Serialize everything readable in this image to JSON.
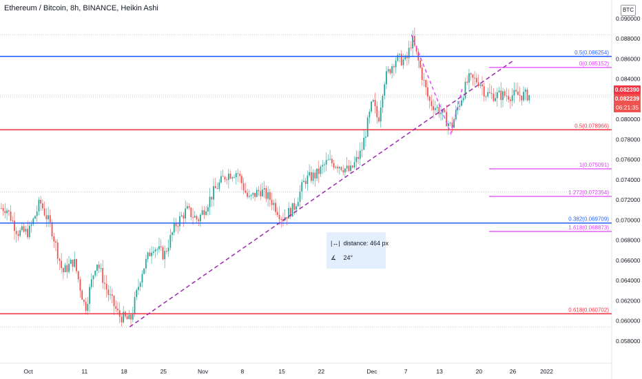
{
  "header": {
    "title": "Ethereum / Bitcoin, 8h, BINANCE, Heikin Ashi",
    "currency_badge": "BTC"
  },
  "price_tags": {
    "last_price": "0.082390",
    "second_price": "0.082239",
    "countdown": "06:21:35",
    "last_color": "#f23645",
    "second_color": "#ef5350"
  },
  "measure_tool": {
    "distance_label": "distance: 464 px",
    "angle_label": "24°",
    "ruler_icon": "ruler-icon",
    "angle_icon": "angle-icon"
  },
  "chart_data": {
    "type": "candlestick",
    "y_ticks": [
      "0.090000",
      "0.088000",
      "0.086000",
      "0.084000",
      "0.082000",
      "0.080000",
      "0.078000",
      "0.076000",
      "0.074000",
      "0.072000",
      "0.070000",
      "0.068000",
      "0.066000",
      "0.064000",
      "0.062000",
      "0.060000",
      "0.058000"
    ],
    "ylim": [
      0.0572,
      0.0908
    ],
    "x_ticks": [
      {
        "label": "Oct",
        "date": "2021-10-01"
      },
      {
        "label": "11",
        "date": "2021-10-11"
      },
      {
        "label": "18",
        "date": "2021-10-18"
      },
      {
        "label": "25",
        "date": "2021-10-25"
      },
      {
        "label": "Nov",
        "date": "2021-11-01"
      },
      {
        "label": "8",
        "date": "2021-11-08"
      },
      {
        "label": "15",
        "date": "2021-11-15"
      },
      {
        "label": "22",
        "date": "2021-11-22"
      },
      {
        "label": "Dec",
        "date": "2021-12-01"
      },
      {
        "label": "7",
        "date": "2021-12-07"
      },
      {
        "label": "13",
        "date": "2021-12-13"
      },
      {
        "label": "20",
        "date": "2021-12-20"
      },
      {
        "label": "26",
        "date": "2021-12-26"
      },
      {
        "label": "2022",
        "date": "2022-01-01"
      }
    ],
    "up_color": "#26a69a",
    "down_color": "#ef5350",
    "price_path": [
      [
        "2021-09-27",
        0.0712
      ],
      [
        "2021-09-29",
        0.0688
      ],
      [
        "2021-10-01",
        0.0688
      ],
      [
        "2021-10-03",
        0.0718
      ],
      [
        "2021-10-05",
        0.0692
      ],
      [
        "2021-10-07",
        0.0648
      ],
      [
        "2021-10-09",
        0.066
      ],
      [
        "2021-10-11",
        0.0612
      ],
      [
        "2021-10-13",
        0.066
      ],
      [
        "2021-10-15",
        0.0628
      ],
      [
        "2021-10-17",
        0.0605
      ],
      [
        "2021-10-19",
        0.06
      ],
      [
        "2021-10-21",
        0.0648
      ],
      [
        "2021-10-23",
        0.0675
      ],
      [
        "2021-10-25",
        0.0665
      ],
      [
        "2021-10-27",
        0.0695
      ],
      [
        "2021-10-29",
        0.071
      ],
      [
        "2021-10-31",
        0.07
      ],
      [
        "2021-11-03",
        0.073
      ],
      [
        "2021-11-05",
        0.0745
      ],
      [
        "2021-11-07",
        0.0748
      ],
      [
        "2021-11-09",
        0.072
      ],
      [
        "2021-11-11",
        0.073
      ],
      [
        "2021-11-13",
        0.072
      ],
      [
        "2021-11-15",
        0.0702
      ],
      [
        "2021-11-17",
        0.0712
      ],
      [
        "2021-11-19",
        0.074
      ],
      [
        "2021-11-21",
        0.0745
      ],
      [
        "2021-11-23",
        0.0758
      ],
      [
        "2021-11-25",
        0.0755
      ],
      [
        "2021-11-27",
        0.0748
      ],
      [
        "2021-11-29",
        0.0768
      ],
      [
        "2021-12-01",
        0.0818
      ],
      [
        "2021-12-02",
        0.0798
      ],
      [
        "2021-12-03",
        0.0838
      ],
      [
        "2021-12-05",
        0.086
      ],
      [
        "2021-12-07",
        0.0858
      ],
      [
        "2021-12-08",
        0.088
      ],
      [
        "2021-12-09",
        0.086
      ],
      [
        "2021-12-11",
        0.0818
      ],
      [
        "2021-12-13",
        0.0808
      ],
      [
        "2021-12-15",
        0.0792
      ],
      [
        "2021-12-16",
        0.081
      ],
      [
        "2021-12-18",
        0.084
      ],
      [
        "2021-12-20",
        0.0838
      ],
      [
        "2021-12-21",
        0.0826
      ],
      [
        "2021-12-22",
        0.0824
      ]
    ],
    "horizontal_levels": [
      {
        "price": 0.086254,
        "label": "0.5(0.086254)",
        "color": "#2962ff",
        "span": "full"
      },
      {
        "price": 0.078966,
        "label": "0.5(0.078966)",
        "color": "#f23645",
        "span": "full"
      },
      {
        "price": 0.069709,
        "label": "0.382(0.069709)",
        "color": "#2962ff",
        "span": "full"
      },
      {
        "price": 0.060702,
        "label": "0.618(0.060702)",
        "color": "#f23645",
        "span": "full"
      },
      {
        "price": 0.085152,
        "label": "0(0.085152)",
        "color": "#e040fb",
        "span": "partial"
      },
      {
        "price": 0.075091,
        "label": "1(0.075091)",
        "color": "#e040fb",
        "span": "partial"
      },
      {
        "price": 0.072354,
        "label": "1.272(0.072354)",
        "color": "#e040fb",
        "span": "partial"
      },
      {
        "price": 0.068873,
        "label": "1.618(0.068873)",
        "color": "#e040fb",
        "span": "partial"
      }
    ],
    "dotted_levels": [
      0.0884,
      0.0824,
      0.0822,
      0.0728,
      0.0594
    ],
    "trendline": {
      "from": [
        "2021-10-19",
        0.0594
      ],
      "to": [
        "2021-12-26",
        0.0858
      ],
      "color": "#9c27b0"
    },
    "zigzag": [
      [
        "2021-12-08",
        0.0884
      ],
      [
        "2021-12-15",
        0.0786
      ],
      [
        "2021-12-17",
        0.083
      ]
    ],
    "zigzag_color": "#e040fb"
  }
}
